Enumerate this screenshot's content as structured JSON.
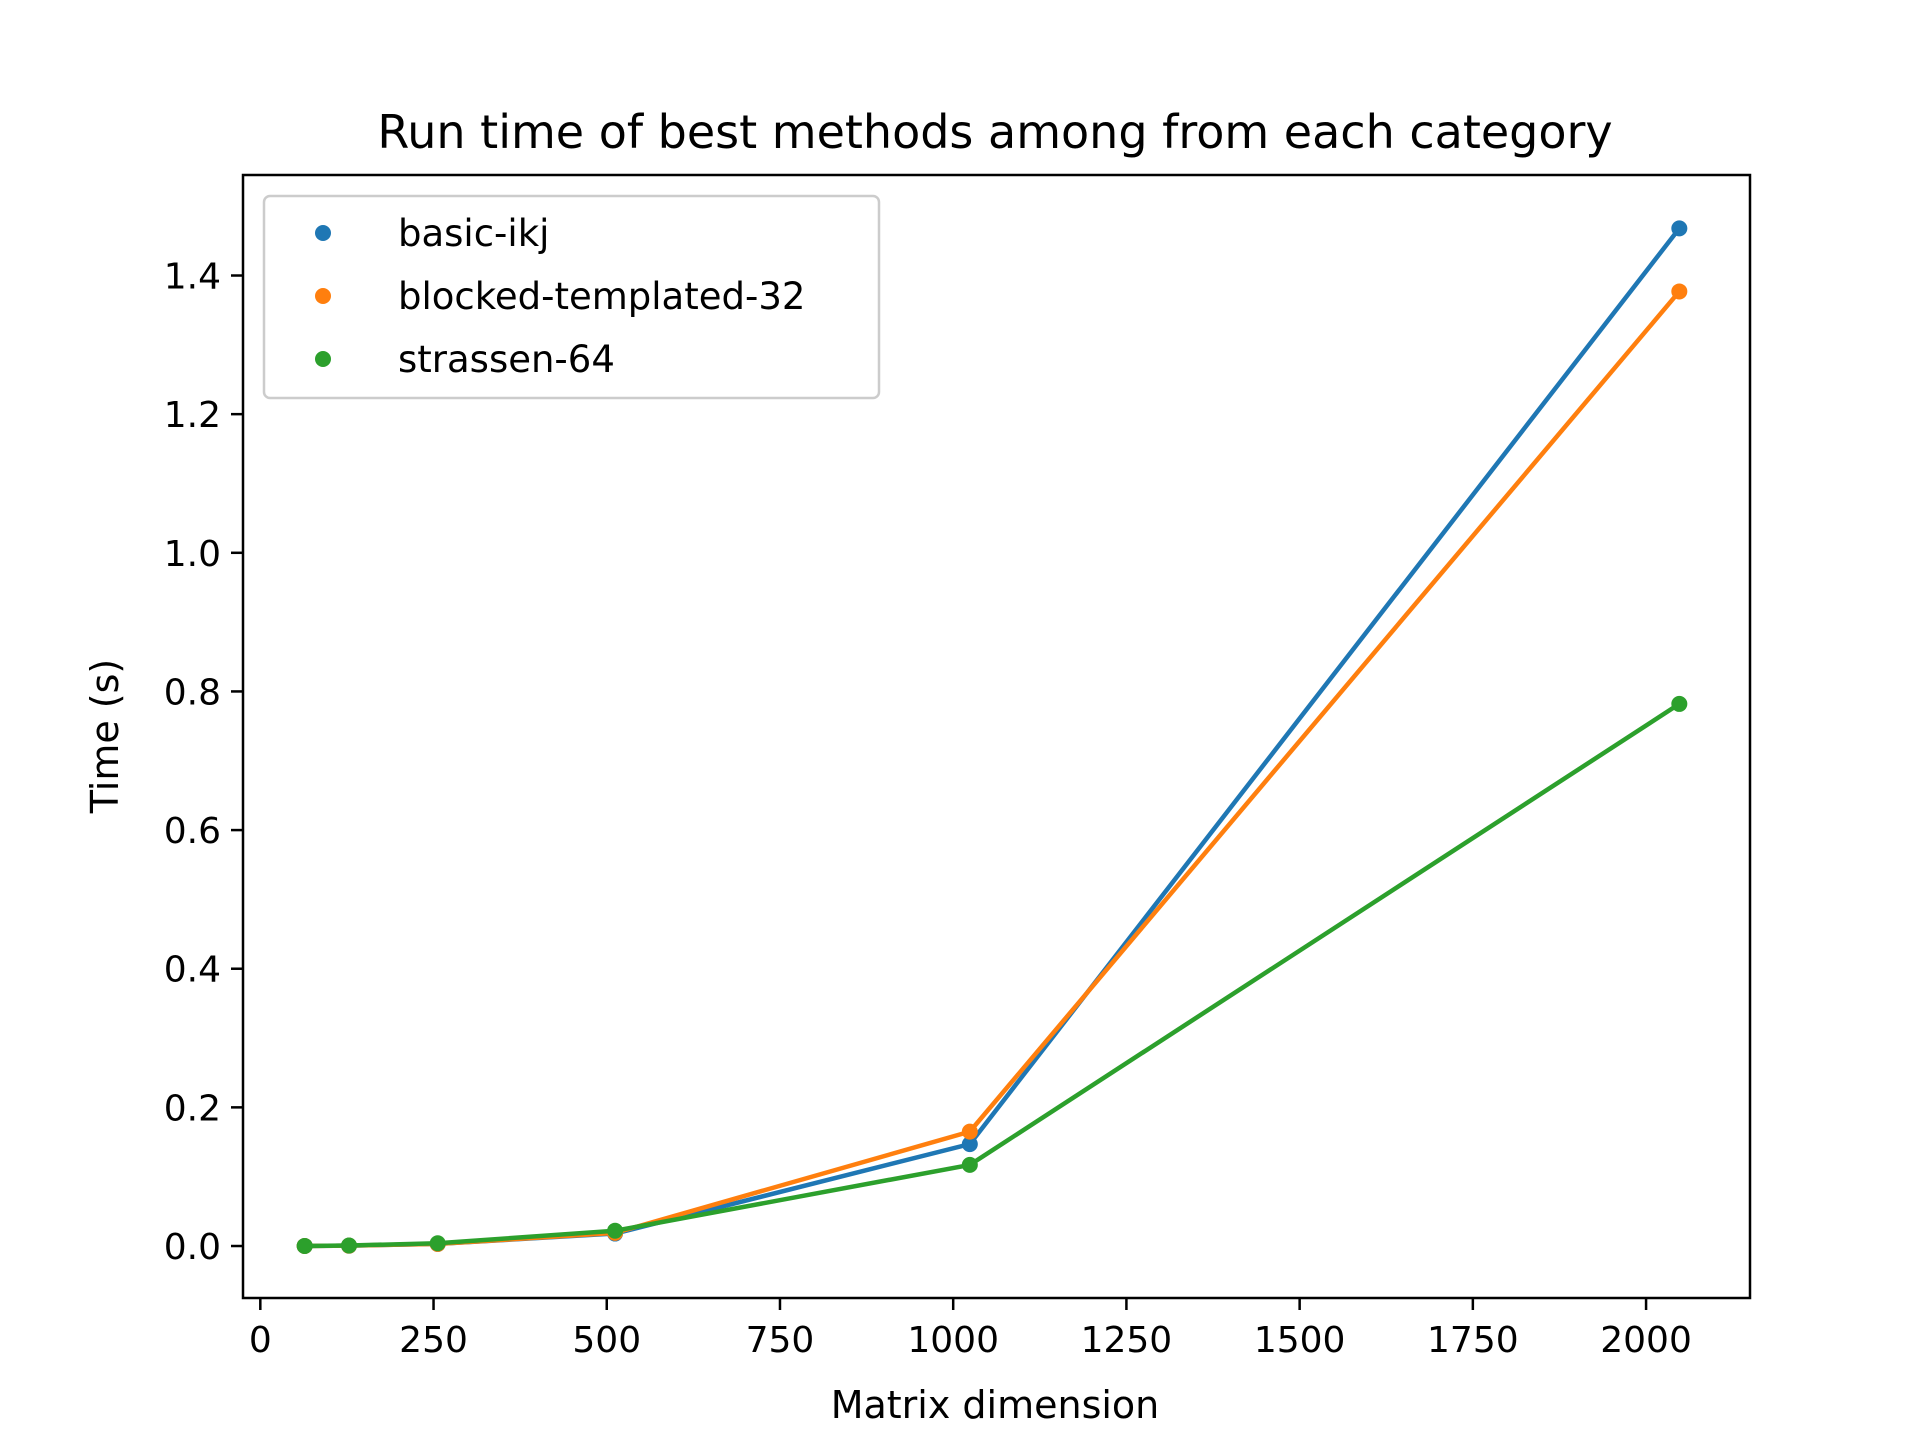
{
  "chart_data": {
    "type": "line",
    "title": "Run time of best methods among from each category",
    "xlabel": "Matrix dimension",
    "ylabel": "Time (s)",
    "xlim": [
      -25,
      2150
    ],
    "ylim": [
      -0.075,
      1.545
    ],
    "xticks": [
      0,
      250,
      500,
      750,
      1000,
      1250,
      1500,
      1750,
      2000
    ],
    "yticks": [
      0.0,
      0.2,
      0.4,
      0.6,
      0.8,
      1.0,
      1.2,
      1.4
    ],
    "xtick_labels": [
      "0",
      "250",
      "500",
      "750",
      "1000",
      "1250",
      "1500",
      "1750",
      "2000"
    ],
    "ytick_labels": [
      "0.0",
      "0.2",
      "0.4",
      "0.6",
      "0.8",
      "1.0",
      "1.2",
      "1.4"
    ],
    "grid": false,
    "legend_position": "top-left",
    "x": [
      64,
      128,
      256,
      512,
      1024,
      2048
    ],
    "series": [
      {
        "name": "basic-ikj",
        "color": "#1f77b4",
        "values": [
          0.0001,
          0.0005,
          0.003,
          0.018,
          0.147,
          1.468
        ]
      },
      {
        "name": "blocked-templated-32",
        "color": "#ff7f0e",
        "values": [
          0.0001,
          0.0005,
          0.003,
          0.019,
          0.165,
          1.377
        ]
      },
      {
        "name": "strassen-64",
        "color": "#2ca02c",
        "values": [
          0.0001,
          0.0007,
          0.004,
          0.022,
          0.117,
          0.782
        ]
      }
    ]
  }
}
